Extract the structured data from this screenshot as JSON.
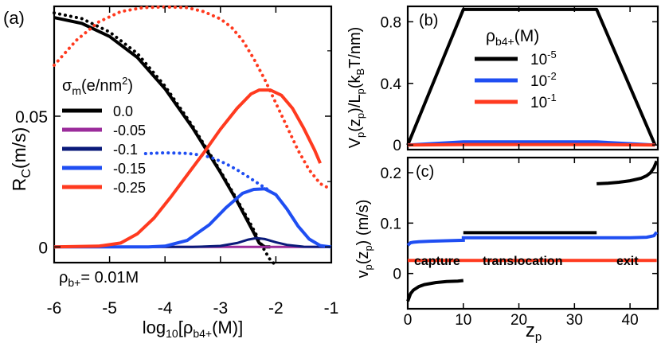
{
  "chart_data": [
    {
      "panel": "(a)",
      "type": "line",
      "xlabel_main": "log",
      "xlabel_sub": "10",
      "xlabel_tail": "[ρ",
      "xlabel_sub2": "b4+",
      "xlabel_end": "(M)]",
      "ylabel": "R",
      "ylabel_sub": "C",
      "ylabel_tail": "(m/s)",
      "xlim": [
        -6,
        -1
      ],
      "ylim": [
        -0.006,
        0.092
      ],
      "x_ticks": [
        -6,
        -5,
        -4,
        -3,
        -2,
        -1
      ],
      "x_tick_labels": [
        "-6",
        "-5",
        "-4",
        "-3",
        "-2",
        "-1"
      ],
      "y_ticks": [
        0,
        0.05
      ],
      "y_tick_labels": [
        "0",
        "0.05"
      ],
      "legend_title": "σ",
      "legend_title_sub": "m",
      "legend_title_tail": "(e/nm",
      "legend_title_sup": "2",
      "legend_title_end": ")",
      "annotation": "ρ",
      "annotation_sub": "b+",
      "annotation_tail": "= 0.01M",
      "series": [
        {
          "name": "0.0",
          "color": "#000000",
          "x": [
            -6,
            -5.5,
            -5,
            -4.5,
            -4,
            -3.5,
            -3,
            -2.7,
            -2.5,
            -2.4,
            -2.3,
            -2.2,
            -2.1
          ],
          "y": [
            0.0877,
            0.0855,
            0.0805,
            0.0725,
            0.0605,
            0.0455,
            0.0285,
            0.0175,
            0.0095,
            0.0055,
            0.0015,
            0,
            0
          ],
          "dotted_x": [
            -6,
            -5.5,
            -5,
            -4.5,
            -4,
            -3.5,
            -3,
            -2.7,
            -2.5,
            -2.4,
            -2.3,
            -2.2,
            -2.1,
            -2.0
          ],
          "dotted_y": [
            0.0895,
            0.0873,
            0.0822,
            0.074,
            0.0615,
            0.0462,
            0.029,
            0.018,
            0.0105,
            0.0065,
            0.0025,
            -0.0015,
            -0.005,
            -0.007
          ]
        },
        {
          "name": "-0.05",
          "color": "#9b2c9b",
          "x": [
            -6,
            -5,
            -4,
            -3,
            -2,
            -1
          ],
          "y": [
            0,
            0,
            0,
            0,
            0,
            0
          ]
        },
        {
          "name": "-0.1",
          "color": "#0a1a7a",
          "x": [
            -6,
            -3.5,
            -3.0,
            -2.7,
            -2.5,
            -2.35,
            -2.2,
            -2.0,
            -1.8,
            -1.5,
            -1
          ],
          "y": [
            0,
            0,
            0.0004,
            0.0015,
            0.0028,
            0.0034,
            0.003,
            0.0018,
            0.0008,
            0.0001,
            0
          ]
        },
        {
          "name": "-0.15",
          "color": "#1f4ef2",
          "x": [
            -6,
            -4.3,
            -4.0,
            -3.6,
            -3.2,
            -2.9,
            -2.6,
            -2.4,
            -2.2,
            -2.0,
            -1.8,
            -1.6,
            -1.4,
            -1.2,
            -1
          ],
          "y": [
            0,
            0,
            0.0003,
            0.0025,
            0.0085,
            0.015,
            0.0205,
            0.022,
            0.0222,
            0.02,
            0.0145,
            0.008,
            0.003,
            0.0005,
            0
          ],
          "dotted_x": [
            -4.35,
            -4.0,
            -3.6,
            -3.3,
            -3.1,
            -2.9,
            -2.7,
            -2.5,
            -2.3,
            -2.15
          ],
          "dotted_y": [
            0.0357,
            0.036,
            0.0358,
            0.035,
            0.0337,
            0.0318,
            0.0295,
            0.0268,
            0.024,
            0.022
          ]
        },
        {
          "name": "-0.25",
          "color": "#ff3a1f",
          "x": [
            -6,
            -5.2,
            -4.8,
            -4.5,
            -4.2,
            -3.9,
            -3.6,
            -3.3,
            -3.0,
            -2.7,
            -2.45,
            -2.3,
            -2.1,
            -1.9,
            -1.7,
            -1.5,
            -1.3,
            -1.2
          ],
          "y": [
            0,
            0.0003,
            0.0015,
            0.005,
            0.011,
            0.019,
            0.0275,
            0.036,
            0.045,
            0.053,
            0.0585,
            0.06,
            0.06,
            0.058,
            0.053,
            0.0455,
            0.037,
            0.032
          ],
          "dotted_x": [
            -6.0,
            -5.6,
            -5.2,
            -4.8,
            -4.4,
            -4.0,
            -3.6,
            -3.3,
            -3.0,
            -2.8,
            -2.6,
            -2.4,
            -2.2,
            -2.0,
            -1.8,
            -1.6,
            -1.4,
            -1.2,
            -1.0
          ],
          "dotted_y": [
            0.0695,
            0.079,
            0.086,
            0.09,
            0.0915,
            0.0918,
            0.0915,
            0.09,
            0.0872,
            0.084,
            0.079,
            0.072,
            0.064,
            0.055,
            0.046,
            0.037,
            0.0295,
            0.0242,
            0.022
          ]
        }
      ]
    },
    {
      "panel": "(b)",
      "type": "line",
      "ylabel": "V",
      "ylabel_sub1": "p",
      "ylabel_mid": "(z",
      "ylabel_sub2": "p",
      "ylabel_mid2": ")/L",
      "ylabel_sub3": "p",
      "ylabel_mid3": "(k",
      "ylabel_sub4": "B",
      "ylabel_end": "T/nm)",
      "xlim": [
        0,
        45
      ],
      "ylim": [
        -0.03,
        0.9
      ],
      "y_ticks": [
        0,
        0.4,
        0.8
      ],
      "y_tick_labels": [
        "0",
        "0.4",
        "0.8"
      ],
      "legend_title": "ρ",
      "legend_title_sub": "b4+",
      "legend_title_tail": "(M)",
      "legend_entries": [
        {
          "base": "10",
          "exp": "-5",
          "color": "#000000"
        },
        {
          "base": "10",
          "exp": "-2",
          "color": "#1f4ef2"
        },
        {
          "base": "10",
          "exp": "-1",
          "color": "#ff3a1f"
        }
      ],
      "series": [
        {
          "name": "10^-5",
          "color": "#000000",
          "x": [
            0,
            10,
            34,
            44.5
          ],
          "y": [
            0,
            0.88,
            0.88,
            0
          ]
        },
        {
          "name": "10^-2",
          "color": "#1f4ef2",
          "x": [
            0,
            10,
            34,
            44.5
          ],
          "y": [
            0,
            0.02,
            0.02,
            0
          ]
        },
        {
          "name": "10^-1",
          "color": "#ff3a1f",
          "x": [
            0,
            10,
            34,
            44.5
          ],
          "y": [
            0,
            0.003,
            0.003,
            0
          ]
        }
      ]
    },
    {
      "panel": "(c)",
      "type": "line",
      "xlabel": "z",
      "xlabel_sub": "p",
      "ylabel": "v",
      "ylabel_sub1": "p",
      "ylabel_mid": "(z",
      "ylabel_sub2": "p",
      "ylabel_end": ") (m/s)",
      "xlim": [
        0,
        45
      ],
      "ylim": [
        -0.07,
        0.23
      ],
      "x_ticks": [
        0,
        10,
        20,
        30,
        40
      ],
      "x_tick_labels": [
        "0",
        "10",
        "20",
        "30",
        "40"
      ],
      "y_ticks": [
        0,
        0.1,
        0.2
      ],
      "y_tick_labels": [
        "0",
        "0.1",
        "0.2"
      ],
      "region_labels": [
        "capture",
        "translocation",
        "exit"
      ],
      "series": [
        {
          "name": "10^-5 capture",
          "color": "#000000",
          "x": [
            0,
            0.5,
            1,
            2,
            3,
            5,
            7,
            9,
            10
          ],
          "y": [
            -0.055,
            -0.04,
            -0.033,
            -0.026,
            -0.022,
            -0.018,
            -0.016,
            -0.015,
            -0.014
          ]
        },
        {
          "name": "10^-5 translocation",
          "color": "#000000",
          "x": [
            10,
            34
          ],
          "y": [
            0.081,
            0.081
          ]
        },
        {
          "name": "10^-5 exit",
          "color": "#000000",
          "x": [
            34,
            36,
            38,
            40,
            42,
            43,
            43.7,
            44.3,
            44.8
          ],
          "y": [
            0.178,
            0.179,
            0.181,
            0.184,
            0.189,
            0.194,
            0.2,
            0.21,
            0.223
          ]
        },
        {
          "name": "10^-2",
          "color": "#1f4ef2",
          "x": [
            0,
            0.5,
            1,
            2,
            4,
            7,
            10,
            10.01,
            20,
            34,
            34.01,
            40,
            43,
            44.3,
            44.8
          ],
          "y": [
            0.056,
            0.061,
            0.062,
            0.063,
            0.064,
            0.065,
            0.066,
            0.071,
            0.071,
            0.071,
            0.071,
            0.071,
            0.072,
            0.075,
            0.082
          ]
        },
        {
          "name": "10^-1",
          "color": "#ff3a1f",
          "x": [
            0,
            44.8
          ],
          "y": [
            0.026,
            0.026
          ]
        }
      ]
    }
  ]
}
